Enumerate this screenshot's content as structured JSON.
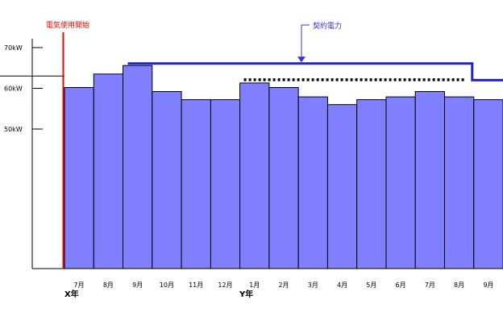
{
  "chart_data": {
    "type": "bar",
    "categories": [
      "7月",
      "8月",
      "9月",
      "10月",
      "11月",
      "12月",
      "1月",
      "2月",
      "3月",
      "4月",
      "5月",
      "6月",
      "7月",
      "8月",
      "9月"
    ],
    "values": [
      60.2,
      63.5,
      65.6,
      59.2,
      57.2,
      57.2,
      61.3,
      60.2,
      57.9,
      56.0,
      57.2,
      57.9,
      59.2,
      57.9,
      57.2
    ],
    "y_ticks": [
      {
        "value": 70,
        "label": "70kW"
      },
      {
        "value": 60,
        "label": "60kW"
      },
      {
        "value": 50,
        "label": "50kW"
      }
    ],
    "year_labels": [
      "X年",
      "Y年"
    ],
    "annotations": {
      "start_label": "電気使用開始",
      "contract_label": "契約電力"
    },
    "contract_power": {
      "step_values": [
        65.6,
        61.3
      ],
      "change_before_category": 14
    },
    "dotted_level": {
      "value": 61.3,
      "from_category": 6,
      "to_category": 13
    },
    "colors": {
      "bar_fill": "#8080ff",
      "bar_stroke": "#000000",
      "contract_line": "#2222cc",
      "start_line": "#ff0000",
      "dotted_line": "#000000",
      "start_text": "#ff0000",
      "contract_text": "#3333cc"
    }
  }
}
